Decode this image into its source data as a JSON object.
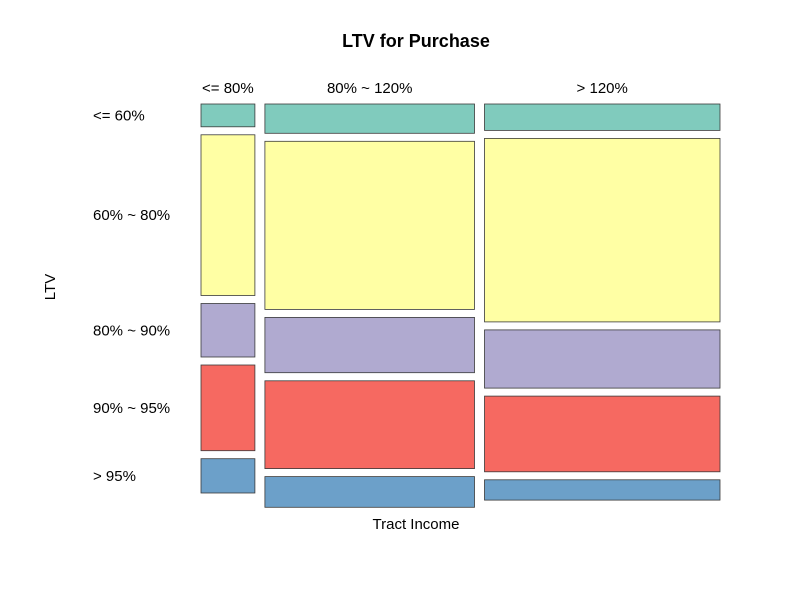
{
  "chart_data": {
    "type": "mosaic",
    "title": "LTV for Purchase",
    "xlabel": "Tract Income",
    "ylabel": "LTV",
    "categories": [
      "<= 80%",
      "80% ~ 120%",
      "> 120%"
    ],
    "column_shares": [
      0.108,
      0.42,
      0.472
    ],
    "rows": [
      "<= 60%",
      "60% ~ 80%",
      "80% ~ 90%",
      "90% ~ 95%",
      "> 95%"
    ],
    "row_label_anchor_column": 0,
    "colors": [
      "#80cbbd",
      "#ffffa4",
      "#b0aad0",
      "#f66961",
      "#6ca0c9"
    ],
    "proportions": [
      [
        0.064,
        0.45,
        0.15,
        0.24,
        0.096
      ],
      [
        0.082,
        0.471,
        0.155,
        0.246,
        0.086
      ],
      [
        0.074,
        0.514,
        0.163,
        0.212,
        0.057
      ]
    ]
  }
}
